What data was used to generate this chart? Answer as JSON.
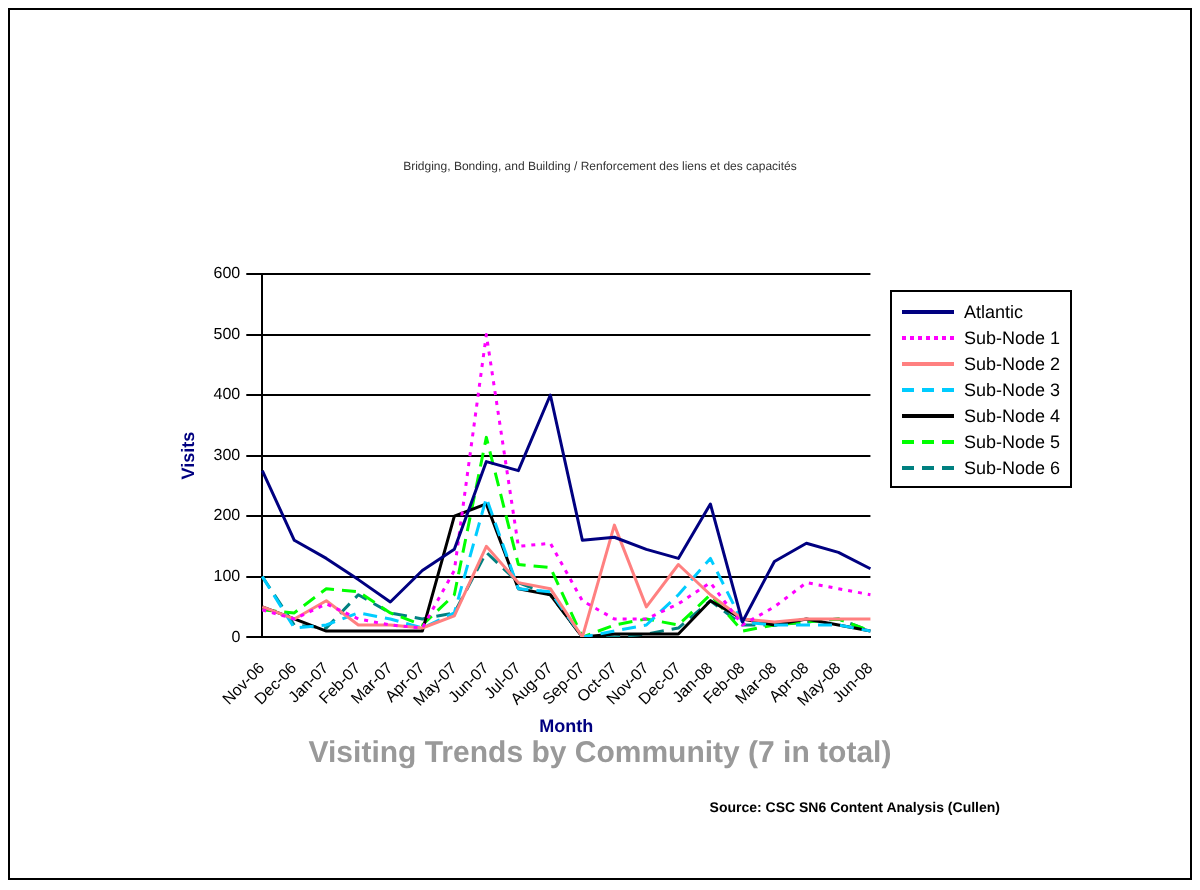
{
  "chart_data": {
    "type": "line",
    "title": "Visiting Trends by Community (7 in total)",
    "subtitle": "Bridging, Bonding, and Building / Renforcement des liens et des capacités",
    "xlabel": "Month",
    "ylabel": "Visits",
    "annotations": [
      "Source: CSC SN6 Content Analysis (Cullen)"
    ],
    "categories": [
      "Nov-06",
      "Dec-06",
      "Jan-07",
      "Feb-07",
      "Mar-07",
      "Apr-07",
      "May-07",
      "Jun-07",
      "Jul-07",
      "Aug-07",
      "Sep-07",
      "Oct-07",
      "Nov-07",
      "Dec-07",
      "Jan-08",
      "Feb-08",
      "Mar-08",
      "Apr-08",
      "May-08",
      "Jun-08"
    ],
    "series": [
      {
        "name": "Atlantic",
        "color": "#000080",
        "line_style": "solid",
        "values": [
          275,
          160,
          130,
          95,
          58,
          110,
          145,
          290,
          275,
          400,
          160,
          165,
          145,
          130,
          220,
          25,
          125,
          155,
          140,
          113
        ]
      },
      {
        "name": "Sub-Node 1",
        "color": "#ff00ff",
        "line_style": "dotted",
        "values": [
          45,
          30,
          55,
          30,
          20,
          15,
          110,
          500,
          150,
          155,
          60,
          30,
          30,
          55,
          90,
          20,
          50,
          90,
          80,
          70
        ]
      },
      {
        "name": "Sub-Node 2",
        "color": "#ff8080",
        "line_style": "solid",
        "values": [
          50,
          30,
          60,
          20,
          20,
          15,
          35,
          150,
          90,
          80,
          0,
          185,
          50,
          120,
          70,
          30,
          25,
          30,
          30,
          30
        ]
      },
      {
        "name": "Sub-Node 3",
        "color": "#00ccff",
        "line_style": "dashed",
        "values": [
          100,
          15,
          20,
          40,
          30,
          15,
          40,
          230,
          80,
          75,
          0,
          10,
          20,
          70,
          130,
          25,
          20,
          20,
          20,
          10
        ]
      },
      {
        "name": "Sub-Node 4",
        "color": "#000000",
        "line_style": "solid",
        "values": [
          50,
          30,
          10,
          10,
          10,
          10,
          200,
          220,
          80,
          70,
          0,
          5,
          5,
          5,
          60,
          30,
          20,
          30,
          20,
          10
        ]
      },
      {
        "name": "Sub-Node 5",
        "color": "#00ff00",
        "line_style": "dashed",
        "values": [
          45,
          40,
          80,
          75,
          40,
          20,
          70,
          330,
          120,
          115,
          0,
          20,
          30,
          20,
          70,
          10,
          20,
          25,
          30,
          10
        ]
      },
      {
        "name": "Sub-Node 6",
        "color": "#008080",
        "line_style": "dashed",
        "values": [
          100,
          20,
          15,
          70,
          40,
          30,
          40,
          140,
          90,
          70,
          0,
          0,
          5,
          15,
          60,
          20,
          20,
          25,
          30,
          10
        ]
      }
    ],
    "ylim": [
      0,
      600
    ],
    "yticks": [
      0,
      100,
      200,
      300,
      400,
      500,
      600
    ],
    "grid": "y",
    "legend": "right",
    "marker": "none"
  }
}
